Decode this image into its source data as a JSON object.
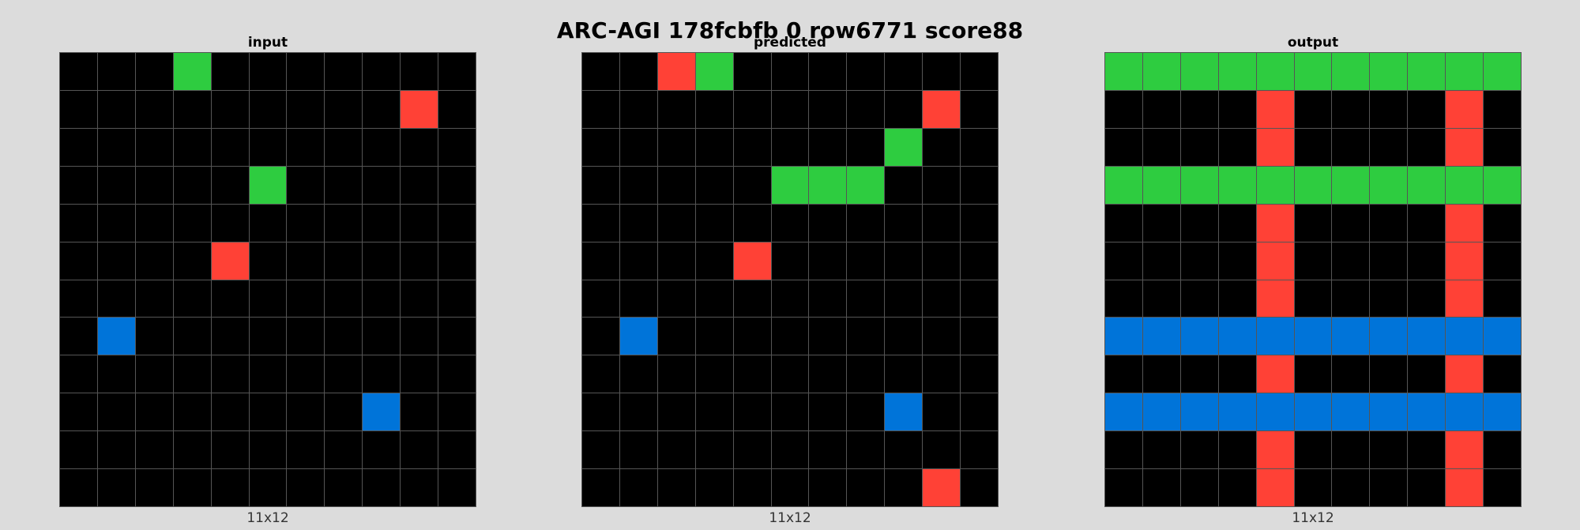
{
  "title": "ARC-AGI 178fcbfb 0 row6771 score88",
  "colors": {
    "0": "#000000",
    "1": "#0074d9",
    "2": "#ff4136",
    "3": "#2ecc40"
  },
  "panels": [
    {
      "label": "input",
      "dims": "11x12",
      "grid": [
        [
          0,
          0,
          0,
          3,
          0,
          0,
          0,
          0,
          0,
          0,
          0
        ],
        [
          0,
          0,
          0,
          0,
          0,
          0,
          0,
          0,
          0,
          2,
          0
        ],
        [
          0,
          0,
          0,
          0,
          0,
          0,
          0,
          0,
          0,
          0,
          0
        ],
        [
          0,
          0,
          0,
          0,
          0,
          3,
          0,
          0,
          0,
          0,
          0
        ],
        [
          0,
          0,
          0,
          0,
          0,
          0,
          0,
          0,
          0,
          0,
          0
        ],
        [
          0,
          0,
          0,
          0,
          2,
          0,
          0,
          0,
          0,
          0,
          0
        ],
        [
          0,
          0,
          0,
          0,
          0,
          0,
          0,
          0,
          0,
          0,
          0
        ],
        [
          0,
          1,
          0,
          0,
          0,
          0,
          0,
          0,
          0,
          0,
          0
        ],
        [
          0,
          0,
          0,
          0,
          0,
          0,
          0,
          0,
          0,
          0,
          0
        ],
        [
          0,
          0,
          0,
          0,
          0,
          0,
          0,
          0,
          1,
          0,
          0
        ],
        [
          0,
          0,
          0,
          0,
          0,
          0,
          0,
          0,
          0,
          0,
          0
        ],
        [
          0,
          0,
          0,
          0,
          0,
          0,
          0,
          0,
          0,
          0,
          0
        ]
      ]
    },
    {
      "label": "predicted",
      "dims": "11x12",
      "grid": [
        [
          0,
          0,
          2,
          3,
          0,
          0,
          0,
          0,
          0,
          0,
          0
        ],
        [
          0,
          0,
          0,
          0,
          0,
          0,
          0,
          0,
          0,
          2,
          0
        ],
        [
          0,
          0,
          0,
          0,
          0,
          0,
          0,
          0,
          3,
          0,
          0
        ],
        [
          0,
          0,
          0,
          0,
          0,
          3,
          3,
          3,
          0,
          0,
          0
        ],
        [
          0,
          0,
          0,
          0,
          0,
          0,
          0,
          0,
          0,
          0,
          0
        ],
        [
          0,
          0,
          0,
          0,
          2,
          0,
          0,
          0,
          0,
          0,
          0
        ],
        [
          0,
          0,
          0,
          0,
          0,
          0,
          0,
          0,
          0,
          0,
          0
        ],
        [
          0,
          1,
          0,
          0,
          0,
          0,
          0,
          0,
          0,
          0,
          0
        ],
        [
          0,
          0,
          0,
          0,
          0,
          0,
          0,
          0,
          0,
          0,
          0
        ],
        [
          0,
          0,
          0,
          0,
          0,
          0,
          0,
          0,
          1,
          0,
          0
        ],
        [
          0,
          0,
          0,
          0,
          0,
          0,
          0,
          0,
          0,
          0,
          0
        ],
        [
          0,
          0,
          0,
          0,
          0,
          0,
          0,
          0,
          0,
          2,
          0
        ]
      ]
    },
    {
      "label": "output",
      "dims": "11x12",
      "grid": [
        [
          3,
          3,
          3,
          3,
          3,
          3,
          3,
          3,
          3,
          3,
          3
        ],
        [
          0,
          0,
          0,
          0,
          2,
          0,
          0,
          0,
          0,
          2,
          0
        ],
        [
          0,
          0,
          0,
          0,
          2,
          0,
          0,
          0,
          0,
          2,
          0
        ],
        [
          3,
          3,
          3,
          3,
          3,
          3,
          3,
          3,
          3,
          3,
          3
        ],
        [
          0,
          0,
          0,
          0,
          2,
          0,
          0,
          0,
          0,
          2,
          0
        ],
        [
          0,
          0,
          0,
          0,
          2,
          0,
          0,
          0,
          0,
          2,
          0
        ],
        [
          0,
          0,
          0,
          0,
          2,
          0,
          0,
          0,
          0,
          2,
          0
        ],
        [
          1,
          1,
          1,
          1,
          1,
          1,
          1,
          1,
          1,
          1,
          1
        ],
        [
          0,
          0,
          0,
          0,
          2,
          0,
          0,
          0,
          0,
          2,
          0
        ],
        [
          1,
          1,
          1,
          1,
          1,
          1,
          1,
          1,
          1,
          1,
          1
        ],
        [
          0,
          0,
          0,
          0,
          2,
          0,
          0,
          0,
          0,
          2,
          0
        ],
        [
          0,
          0,
          0,
          0,
          2,
          0,
          0,
          0,
          0,
          2,
          0
        ]
      ]
    }
  ]
}
